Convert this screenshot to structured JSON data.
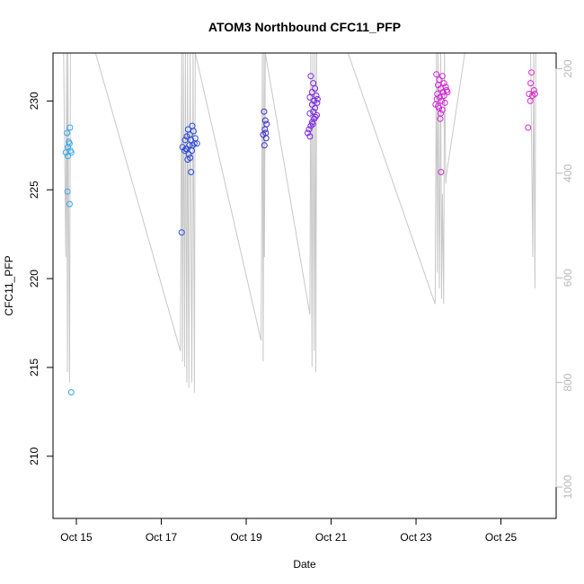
{
  "chart_data": {
    "type": "scatter",
    "title": "ATOM3 Northbound CFC11_PFP",
    "xlabel": "Date",
    "ylabel": "CFC11_PFP",
    "x_ticks": [
      {
        "label": "Oct 15",
        "day": 15
      },
      {
        "label": "Oct 17",
        "day": 17
      },
      {
        "label": "Oct 19",
        "day": 19
      },
      {
        "label": "Oct 21",
        "day": 21
      },
      {
        "label": "Oct 23",
        "day": 23
      },
      {
        "label": "Oct 25",
        "day": 25
      }
    ],
    "xlim_days": [
      14.45,
      26.3
    ],
    "y_ticks": [
      210,
      215,
      220,
      225,
      230
    ],
    "ylim": [
      206.5,
      232.7
    ],
    "y2_label": "",
    "y2_ticks": [
      200,
      400,
      600,
      800,
      1000
    ],
    "y2lim": [
      1060,
      170
    ],
    "y2_color": "#bebebe",
    "colors": {
      "early": "#29abe2",
      "mid": "#1f3ddb",
      "late": "#e225d8"
    },
    "series": [
      {
        "color": "#35a7e8",
        "points": [
          [
            14.78,
            228.2
          ],
          [
            14.82,
            227.7
          ],
          [
            14.8,
            227.4
          ],
          [
            14.86,
            227.2
          ],
          [
            14.75,
            227.1
          ],
          [
            14.84,
            227.6
          ],
          [
            14.88,
            227.1
          ],
          [
            14.8,
            226.9
          ],
          [
            14.85,
            228.5
          ],
          [
            14.79,
            224.9
          ],
          [
            14.84,
            224.2
          ],
          [
            14.88,
            213.6
          ]
        ]
      },
      {
        "color": "#2a49d8",
        "points": [
          [
            17.5,
            227.4
          ],
          [
            17.56,
            227.8
          ],
          [
            17.6,
            228.0
          ],
          [
            17.63,
            228.4
          ],
          [
            17.67,
            228.1
          ],
          [
            17.7,
            227.8
          ],
          [
            17.73,
            228.6
          ],
          [
            17.76,
            228.3
          ],
          [
            17.8,
            227.9
          ],
          [
            17.84,
            227.6
          ],
          [
            17.55,
            227.2
          ],
          [
            17.6,
            227.3
          ],
          [
            17.65,
            227.0
          ],
          [
            17.68,
            226.8
          ],
          [
            17.72,
            227.2
          ],
          [
            17.74,
            227.5
          ],
          [
            17.78,
            227.6
          ],
          [
            17.62,
            226.7
          ],
          [
            17.7,
            226.0
          ],
          [
            17.48,
            222.6
          ],
          [
            17.58,
            227.3
          ],
          [
            17.66,
            227.5
          ]
        ]
      },
      {
        "color": "#3a2fd0",
        "points": [
          [
            19.42,
            229.4
          ],
          [
            19.45,
            228.9
          ],
          [
            19.48,
            228.7
          ],
          [
            19.44,
            228.4
          ],
          [
            19.46,
            228.2
          ],
          [
            19.4,
            228.1
          ],
          [
            19.47,
            227.9
          ],
          [
            19.43,
            227.5
          ]
        ]
      },
      {
        "color": "#7b27e0",
        "points": [
          [
            20.52,
            231.4
          ],
          [
            20.58,
            231.0
          ],
          [
            20.62,
            230.7
          ],
          [
            20.55,
            230.5
          ],
          [
            20.65,
            230.3
          ],
          [
            20.5,
            230.2
          ],
          [
            20.6,
            230.0
          ],
          [
            20.68,
            230.1
          ],
          [
            20.55,
            229.8
          ],
          [
            20.62,
            229.6
          ],
          [
            20.58,
            229.4
          ],
          [
            20.5,
            229.3
          ],
          [
            20.66,
            229.2
          ],
          [
            20.6,
            229.0
          ],
          [
            20.55,
            228.8
          ],
          [
            20.52,
            228.6
          ],
          [
            20.48,
            228.4
          ],
          [
            20.45,
            228.2
          ],
          [
            20.5,
            228.0
          ],
          [
            20.63,
            229.1
          ],
          [
            20.57,
            228.7
          ],
          [
            20.67,
            229.9
          ]
        ]
      },
      {
        "color": "#d227d8",
        "points": [
          [
            23.48,
            231.5
          ],
          [
            23.55,
            231.2
          ],
          [
            23.62,
            231.4
          ],
          [
            23.66,
            231.0
          ],
          [
            23.7,
            230.8
          ],
          [
            23.52,
            230.9
          ],
          [
            23.58,
            230.7
          ],
          [
            23.64,
            230.5
          ],
          [
            23.72,
            230.6
          ],
          [
            23.5,
            230.4
          ],
          [
            23.56,
            230.2
          ],
          [
            23.6,
            230.0
          ],
          [
            23.68,
            229.9
          ],
          [
            23.46,
            229.8
          ],
          [
            23.54,
            229.6
          ],
          [
            23.62,
            229.5
          ],
          [
            23.58,
            229.3
          ],
          [
            23.52,
            229.7
          ],
          [
            23.66,
            230.3
          ],
          [
            23.74,
            230.5
          ],
          [
            23.59,
            226.0
          ],
          [
            23.57,
            229.0
          ],
          [
            23.49,
            230.1
          ]
        ]
      },
      {
        "color": "#e028d0",
        "points": [
          [
            25.72,
            231.6
          ],
          [
            25.7,
            231.0
          ],
          [
            25.78,
            230.6
          ],
          [
            25.66,
            230.4
          ],
          [
            25.74,
            230.3
          ],
          [
            25.8,
            230.4
          ],
          [
            25.69,
            230.0
          ],
          [
            25.64,
            228.5
          ]
        ]
      }
    ],
    "line_series": {
      "color": "#c8c8c8",
      "points": [
        [
          14.7,
          170
        ],
        [
          14.75,
          560
        ],
        [
          14.77,
          170
        ],
        [
          14.79,
          780
        ],
        [
          14.8,
          170
        ],
        [
          14.84,
          800
        ],
        [
          14.86,
          170
        ],
        [
          14.9,
          170
        ],
        [
          15.45,
          170
        ],
        [
          17.45,
          740
        ],
        [
          17.48,
          170
        ],
        [
          17.5,
          760
        ],
        [
          17.52,
          170
        ],
        [
          17.55,
          770
        ],
        [
          17.57,
          170
        ],
        [
          17.6,
          800
        ],
        [
          17.62,
          170
        ],
        [
          17.65,
          810
        ],
        [
          17.68,
          170
        ],
        [
          17.72,
          800
        ],
        [
          17.75,
          170
        ],
        [
          17.78,
          820
        ],
        [
          17.8,
          170
        ],
        [
          19.35,
          720
        ],
        [
          19.38,
          170
        ],
        [
          19.4,
          760
        ],
        [
          19.42,
          170
        ],
        [
          19.43,
          560
        ],
        [
          19.45,
          170
        ],
        [
          20.5,
          670
        ],
        [
          20.52,
          170
        ],
        [
          20.55,
          770
        ],
        [
          20.57,
          170
        ],
        [
          20.6,
          740
        ],
        [
          20.62,
          170
        ],
        [
          20.64,
          780
        ],
        [
          20.66,
          170
        ],
        [
          21.4,
          170
        ],
        [
          23.45,
          650
        ],
        [
          23.48,
          170
        ],
        [
          23.5,
          590
        ],
        [
          23.52,
          170
        ],
        [
          23.55,
          620
        ],
        [
          23.58,
          170
        ],
        [
          23.6,
          640
        ],
        [
          23.62,
          440
        ],
        [
          23.65,
          650
        ],
        [
          23.67,
          170
        ],
        [
          23.7,
          420
        ],
        [
          23.72,
          400
        ],
        [
          24.15,
          170
        ],
        [
          25.7,
          170
        ],
        [
          25.75,
          560
        ],
        [
          25.77,
          170
        ],
        [
          25.8,
          620
        ],
        [
          25.82,
          170
        ]
      ]
    }
  }
}
